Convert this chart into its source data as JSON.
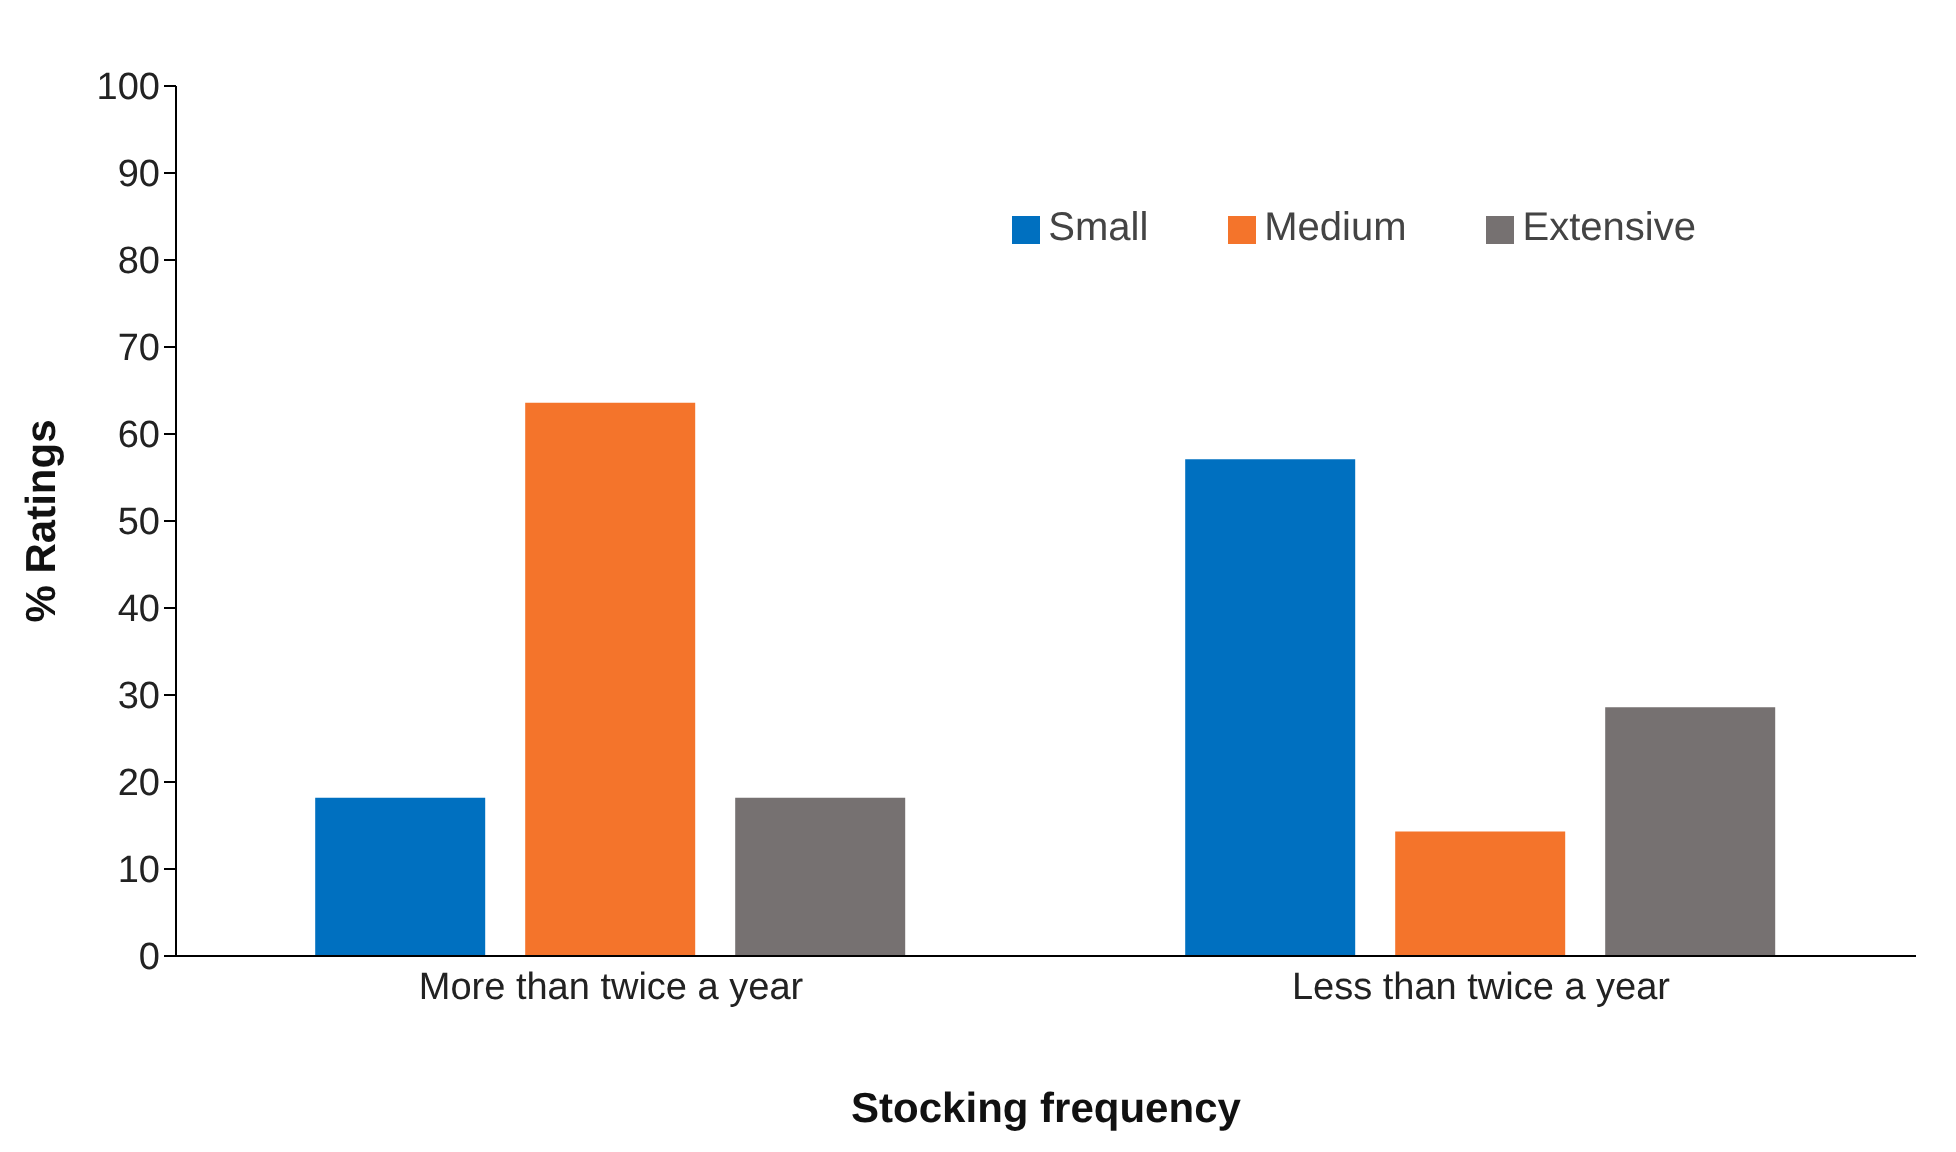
{
  "chart_data": {
    "type": "bar",
    "xlabel": "Stocking frequency",
    "ylabel": "% Ratings",
    "categories": [
      "More than twice a year",
      "Less than twice a year"
    ],
    "series": [
      {
        "name": "Small",
        "color": "#0070c0",
        "values": [
          18.2,
          57.1
        ]
      },
      {
        "name": "Medium",
        "color": "#f4742b",
        "values": [
          63.6,
          14.3
        ]
      },
      {
        "name": "Extensive",
        "color": "#767171",
        "values": [
          18.2,
          28.6
        ]
      }
    ],
    "ylim": [
      0,
      100
    ],
    "yticks": [
      0,
      10,
      20,
      30,
      40,
      50,
      60,
      70,
      80,
      90,
      100
    ],
    "grid": false,
    "legend": "top right"
  }
}
